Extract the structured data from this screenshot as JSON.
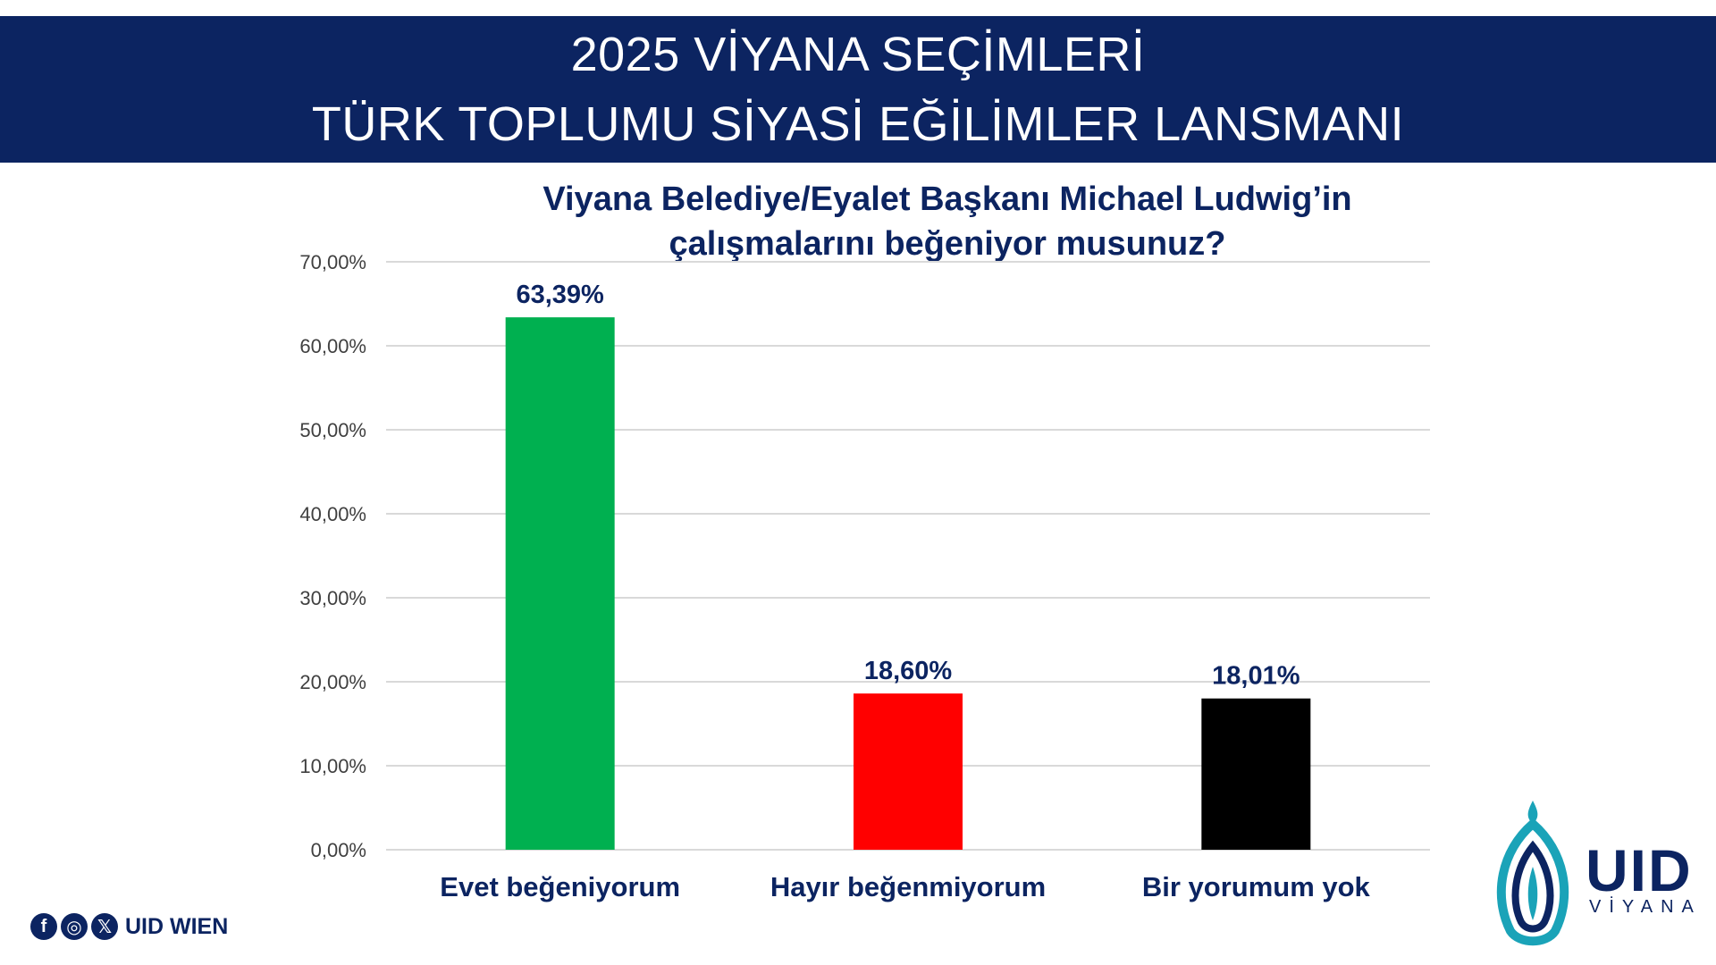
{
  "header": {
    "line1": "2025 VİYANA SEÇİMLERİ",
    "line2": "TÜRK TOPLUMU SİYASİ EĞİLİMLER LANSMANI"
  },
  "chart_data": {
    "type": "bar",
    "title_line1": "Viyana Belediye/Eyalet Başkanı Michael Ludwig’in",
    "title_line2": "çalışmalarını beğeniyor musunuz?",
    "categories": [
      "Evet beğeniyorum",
      "Hayır beğenmiyorum",
      "Bir yorumum yok"
    ],
    "values": [
      63.39,
      18.6,
      18.01
    ],
    "value_labels": [
      "63,39%",
      "18,60%",
      "18,01%"
    ],
    "colors": [
      "#00b050",
      "#ff0000",
      "#000000"
    ],
    "ylim": [
      0,
      70
    ],
    "yticks": [
      0,
      10,
      20,
      30,
      40,
      50,
      60,
      70
    ],
    "ytick_labels": [
      "0,00%",
      "10,00%",
      "20,00%",
      "30,00%",
      "40,00%",
      "50,00%",
      "60,00%",
      "70,00%"
    ],
    "grid": true,
    "xlabel": "",
    "ylabel": ""
  },
  "footer": {
    "social_icons": [
      "facebook-icon",
      "instagram-icon",
      "x-icon"
    ],
    "social_label": "UID WIEN",
    "logo_text": "UID",
    "logo_sub": "VİYANA"
  },
  "colors": {
    "brand_navy": "#0c2461",
    "logo_teal": "#1aa3b8"
  }
}
